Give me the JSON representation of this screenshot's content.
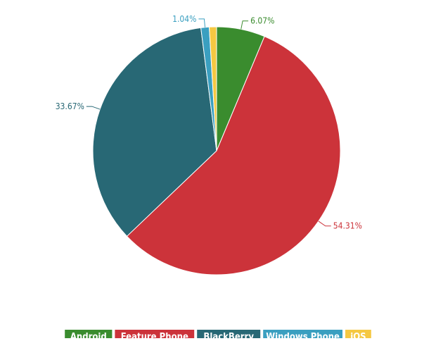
{
  "chart_data": {
    "type": "pie",
    "title": "",
    "categories": [
      "Android",
      "Feature Phone",
      "BlackBerry",
      "Windows Phone",
      "iOS"
    ],
    "values": [
      6.07,
      54.31,
      33.67,
      1.04,
      0.91
    ],
    "data_labels": [
      "6.07%",
      "54.31%",
      "33.67%",
      "1.04%",
      ""
    ],
    "colors": [
      "#3a8c2e",
      "#cc333a",
      "#286875",
      "#3a9fc0",
      "#f5c842"
    ],
    "legend": {
      "position": "bottom",
      "items": [
        "Android",
        "Feature Phone",
        "BlackBerry",
        "Windows Phone",
        "iOS"
      ]
    }
  }
}
